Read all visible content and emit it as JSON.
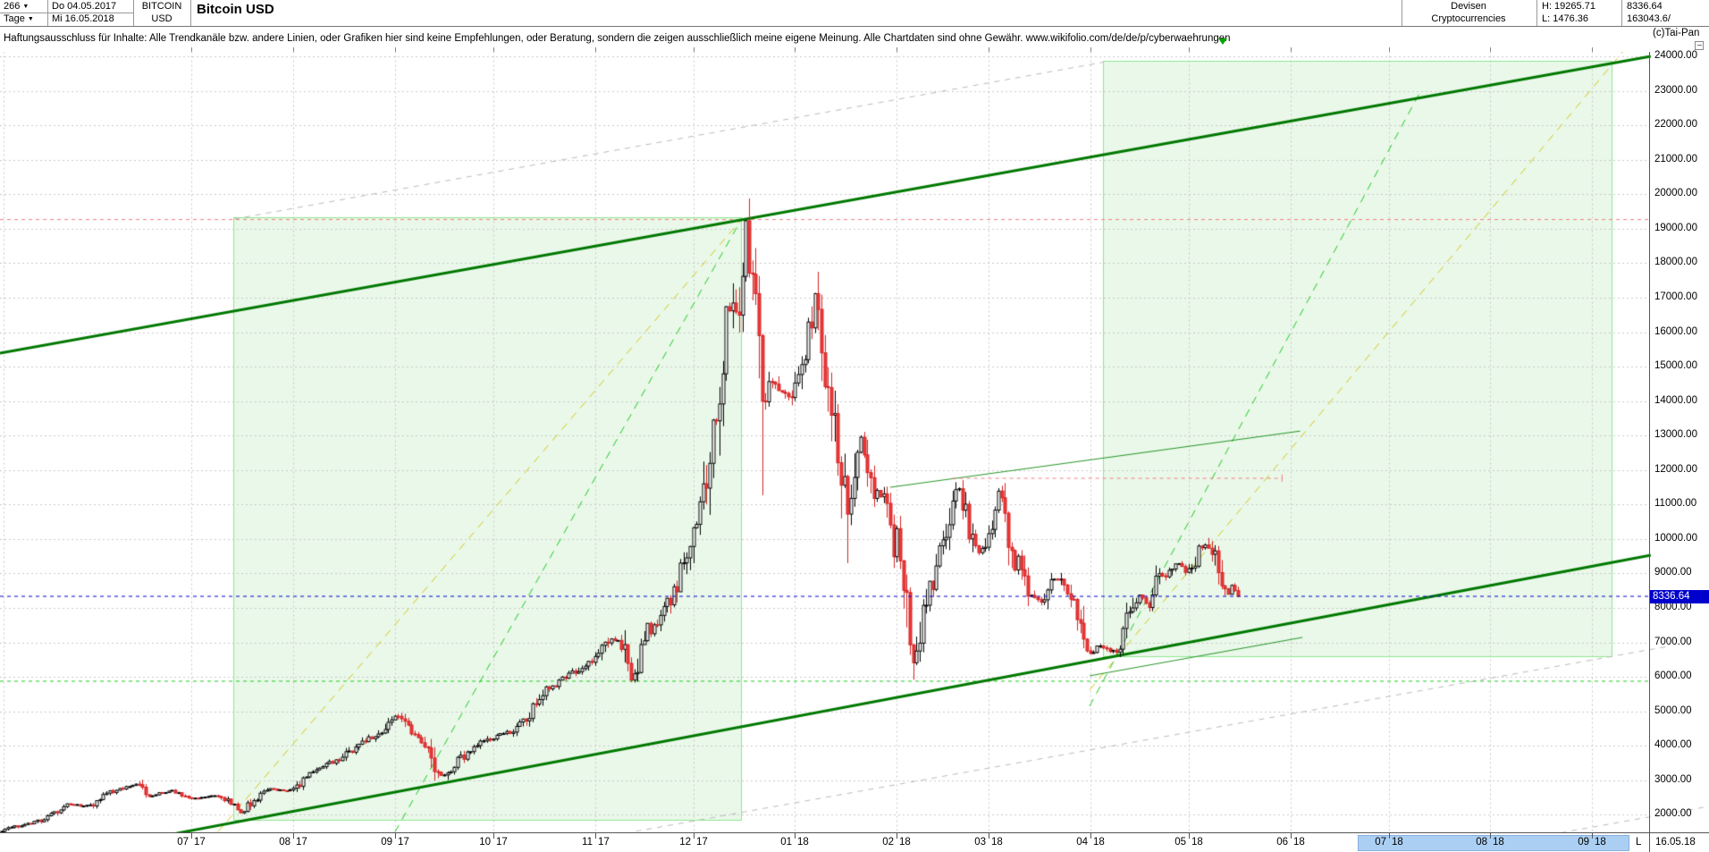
{
  "header": {
    "period_count": "266",
    "timeframe": "Tage",
    "date_from": "Do 04.05.2017",
    "date_to": "Mi 16.05.2018",
    "symbol": "BITCOIN",
    "symbol_currency": "USD",
    "title": "Bitcoin USD",
    "category_line1": "Devisen",
    "category_line2": "Cryptocurrencies",
    "high_label": "H: 19265.71",
    "low_label": "L: 1476.36",
    "last_price": "8336.64",
    "volume": "163043.6/"
  },
  "disclaimer": "Haftungsausschluss für Inhalte: Alle Trendkanäle bzw. andere Linien, oder Grafiken hier sind keine Empfehlungen, oder Beratung, sondern die zeigen ausschließlich meine eigene Meinung. Alle Chartdaten sind ohne Gewähr.  www.wikifolio.com/de/de/p/cyberwaehrungen",
  "watermark": "(c)Tai-Pan",
  "price_badge": "8336.64",
  "bottom_bar": {
    "last_marker": "L",
    "last_date": "16.05.18"
  },
  "colors": {
    "thick_green": "#007800",
    "thin_green": "#259525",
    "region_border": "#8fe68f",
    "region_fill": "#eaf8ea",
    "yellow_dash": "#d2c814",
    "bright_green_dash": "#1ecc1e",
    "grey_dash": "#b9b9b9",
    "red_dash": "#f27d7d",
    "blue_dash": "#0000cc",
    "candle_red": "#ee3a3a",
    "candle_red_border": "#d42222",
    "grid": "#c9c9c9",
    "future_highlight": "#abcff2",
    "badge_blue": "#0000cc",
    "marker_green": "#00a400"
  },
  "chart_data": {
    "type": "candlestick",
    "title": "Bitcoin USD",
    "symbol": "BITCOIN USD",
    "timeframe": "Tage",
    "range_start": "04.05.2017",
    "range_end": "16.05.2018",
    "overall_high": 19265.71,
    "overall_low": 1476.36,
    "last_close": 8336.64,
    "ylim": [
      2000,
      24000
    ],
    "y_step": 1000,
    "grid": true,
    "y_labels": [
      "24000.00",
      "23000.00",
      "22000.00",
      "21000.00",
      "20000.00",
      "19000.00",
      "18000.00",
      "17000.00",
      "16000.00",
      "15000.00",
      "14000.00",
      "13000.00",
      "12000.00",
      "11000.00",
      "10000.00",
      "9000.00",
      "8000.00",
      "7000.00",
      "6000.00",
      "5000.00",
      "4000.00",
      "3000.00",
      "2000.00"
    ],
    "x_months": [
      {
        "m": "07",
        "y": "17",
        "day": 58
      },
      {
        "m": "08",
        "y": "17",
        "day": 89
      },
      {
        "m": "09",
        "y": "17",
        "day": 120
      },
      {
        "m": "10",
        "y": "17",
        "day": 150
      },
      {
        "m": "11",
        "y": "17",
        "day": 181
      },
      {
        "m": "12",
        "y": "17",
        "day": 211
      },
      {
        "m": "01",
        "y": "18",
        "day": 242
      },
      {
        "m": "02",
        "y": "18",
        "day": 273
      },
      {
        "m": "03",
        "y": "18",
        "day": 301
      },
      {
        "m": "04",
        "y": "18",
        "day": 332
      },
      {
        "m": "05",
        "y": "18",
        "day": 362
      },
      {
        "m": "06",
        "y": "18",
        "day": 393
      },
      {
        "m": "07",
        "y": "18",
        "day": 423
      },
      {
        "m": "08",
        "y": "18",
        "day": 454
      },
      {
        "m": "09",
        "y": "18",
        "day": 485
      }
    ],
    "series_start_gridline_day": 0.7,
    "future_highlight_days": [
      413.6,
      496.5
    ],
    "current_marker_day": 372.5,
    "anchors": [
      [
        0,
        1540
      ],
      [
        6,
        1700
      ],
      [
        12,
        1850
      ],
      [
        20,
        2300
      ],
      [
        27,
        2250
      ],
      [
        34,
        2700
      ],
      [
        41,
        2900
      ],
      [
        45,
        2550
      ],
      [
        52,
        2700
      ],
      [
        58,
        2480
      ],
      [
        65,
        2550
      ],
      [
        70,
        2350
      ],
      [
        73,
        2050
      ],
      [
        77,
        2450
      ],
      [
        81,
        2750
      ],
      [
        88,
        2700
      ],
      [
        95,
        3200
      ],
      [
        103,
        3650
      ],
      [
        110,
        4100
      ],
      [
        116,
        4400
      ],
      [
        120,
        4880
      ],
      [
        126,
        4300
      ],
      [
        130,
        4050
      ],
      [
        134,
        3050
      ],
      [
        140,
        3650
      ],
      [
        148,
        4200
      ],
      [
        155,
        4400
      ],
      [
        160,
        4780
      ],
      [
        166,
        5650
      ],
      [
        172,
        5950
      ],
      [
        180,
        6440
      ],
      [
        186,
        7150
      ],
      [
        190,
        6900
      ],
      [
        192,
        5900
      ],
      [
        197,
        7300
      ],
      [
        204,
        8250
      ],
      [
        210,
        9950
      ],
      [
        215,
        11650
      ],
      [
        219,
        14300
      ],
      [
        222,
        16850
      ],
      [
        224,
        16400
      ],
      [
        227,
        19100
      ],
      [
        229,
        17500
      ],
      [
        232,
        13900
      ],
      [
        235,
        14700
      ],
      [
        238,
        14300
      ],
      [
        241,
        14150
      ],
      [
        245,
        15150
      ],
      [
        248,
        17050
      ],
      [
        251,
        14900
      ],
      [
        254,
        13600
      ],
      [
        258,
        10600
      ],
      [
        262,
        12850
      ],
      [
        266,
        11400
      ],
      [
        270,
        11150
      ],
      [
        274,
        9100
      ],
      [
        278,
        6350
      ],
      [
        281,
        8200
      ],
      [
        284,
        8900
      ],
      [
        288,
        10250
      ],
      [
        292,
        11550
      ],
      [
        295,
        10350
      ],
      [
        298,
        9650
      ],
      [
        301,
        10300
      ],
      [
        304,
        11450
      ],
      [
        308,
        9650
      ],
      [
        311,
        9050
      ],
      [
        314,
        8250
      ],
      [
        318,
        8300
      ],
      [
        321,
        8950
      ],
      [
        325,
        8550
      ],
      [
        328,
        7950
      ],
      [
        330,
        7050
      ],
      [
        332,
        6650
      ],
      [
        335,
        6900
      ],
      [
        338,
        6750
      ],
      [
        341,
        6850
      ],
      [
        344,
        7950
      ],
      [
        347,
        8350
      ],
      [
        350,
        8050
      ],
      [
        353,
        8950
      ],
      [
        356,
        9000
      ],
      [
        359,
        9350
      ],
      [
        361,
        9050
      ],
      [
        363,
        9250
      ],
      [
        366,
        9850
      ],
      [
        368,
        9650
      ],
      [
        370,
        9350
      ],
      [
        372,
        8750
      ],
      [
        374,
        8450
      ],
      [
        375,
        8650
      ],
      [
        377,
        8336.64
      ]
    ],
    "candle_overrides": {
      "227": {
        "high": 19265.71
      },
      "232": {
        "low": 11270
      },
      "258": {
        "low": 9300
      },
      "278": {
        "low": 5920
      },
      "377": {
        "close": 8336.64
      }
    },
    "regions": [
      {
        "name": "trend-zone-2017",
        "d1": 70.8,
        "d2": 225.6,
        "p_top": 19330,
        "p_bot": 1850
      },
      {
        "name": "trend-zone-2018",
        "d1": 336,
        "d2": 491,
        "p_top": 23870,
        "p_bot": 6600
      }
    ],
    "lines": [
      {
        "name": "grey-channel-upper",
        "d1": 71,
        "p1": 19280,
        "d2": 336,
        "p2": 23830,
        "color": "grey_dash",
        "w": 1,
        "dash": [
          6,
          6
        ]
      },
      {
        "name": "grey-channel-lower",
        "d1": 193.5,
        "p1": 1520,
        "d2": 509,
        "p2": 6900,
        "color": "grey_dash",
        "w": 1,
        "dash": [
          6,
          6
        ]
      },
      {
        "name": "grey-channel-corner",
        "d1": 475.5,
        "p1": 1480,
        "d2": 521,
        "p2": 2250,
        "color": "grey_dash",
        "w": 1,
        "dash": [
          6,
          6
        ]
      },
      {
        "name": "ath-level",
        "d1": -0.4,
        "p1": 19265.71,
        "d2": 502.9,
        "p2": 19265.71,
        "color": "red_dash",
        "w": 1,
        "dash": [
          4,
          4
        ]
      },
      {
        "name": "feb-low-support",
        "d1": -0.4,
        "p1": 5875,
        "d2": 502.9,
        "p2": 5875,
        "color": "bright_green_dash",
        "w": 1,
        "dash": [
          4,
          4
        ]
      },
      {
        "name": "fan-yellow-left",
        "d1": 66,
        "p1": 1500,
        "d2": 225.6,
        "p2": 19265,
        "color": "yellow_dash",
        "w": 1,
        "dash": [
          9,
          7
        ]
      },
      {
        "name": "fan-green-left",
        "d1": 120,
        "p1": 1500,
        "d2": 225.6,
        "p2": 19265,
        "color": "bright_green_dash",
        "w": 1,
        "dash": [
          9,
          7
        ]
      },
      {
        "name": "fan-green-right",
        "d1": 331.8,
        "p1": 5150,
        "d2": 433,
        "p2": 23040,
        "color": "bright_green_dash",
        "w": 1,
        "dash": [
          9,
          7
        ]
      },
      {
        "name": "fan-yellow-right",
        "d1": 331.8,
        "p1": 5620,
        "d2": 494.5,
        "p2": 24150,
        "color": "yellow_dash",
        "w": 1,
        "dash": [
          9,
          7
        ]
      },
      {
        "name": "main-channel-upper",
        "d1": -0.4,
        "p1": 15390,
        "d2": 502.9,
        "p2": 24000,
        "color": "thick_green",
        "w": 3,
        "dash": null
      },
      {
        "name": "main-channel-lower",
        "d1": 40.5,
        "p1": 1230,
        "d2": 502.9,
        "p2": 9530,
        "color": "thick_green",
        "w": 3,
        "dash": null
      },
      {
        "name": "minor-trend-up",
        "d1": 271,
        "p1": 11500,
        "d2": 396,
        "p2": 13130,
        "color": "thin_green",
        "w": 1,
        "dash": null
      },
      {
        "name": "minor-support-apr",
        "d1": 331.8,
        "p1": 6030,
        "d2": 396.7,
        "p2": 7145,
        "color": "thin_green",
        "w": 1,
        "dash": null
      }
    ],
    "overlay_lines": [
      {
        "name": "feb-high-level",
        "d1": 290,
        "p1": 11760,
        "d2": 390.5,
        "p2": 11760,
        "color": "red_dash",
        "w": 1,
        "dash": [
          4,
          4
        ],
        "endtick": true
      },
      {
        "name": "last-price-line",
        "d1": -0.4,
        "p1": 8336.64,
        "d2": 502.9,
        "p2": 8336.64,
        "color": "blue_dash",
        "w": 1,
        "dash": [
          4,
          4
        ]
      }
    ]
  }
}
